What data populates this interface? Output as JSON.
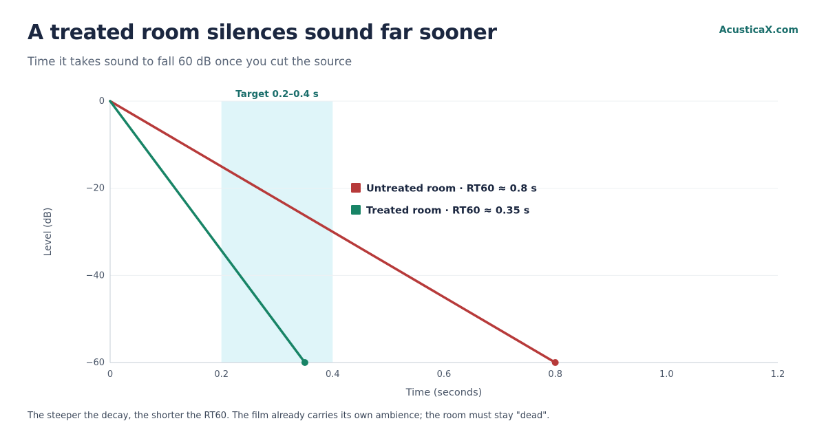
{
  "header": {
    "title": "A treated room silences sound far sooner",
    "subtitle": "Time it takes sound to fall 60 dB once you cut the source",
    "brand": "AcusticaX.com"
  },
  "footnote": "The steeper the decay, the shorter the RT60. The film already carries its own ambience; the room must stay \"dead\".",
  "colors": {
    "untreated": "#b73a3a",
    "treated": "#188466",
    "target_band": "#dff5f9",
    "target_label": "#1a6e6b",
    "text_dark": "#1b2740",
    "axis_text": "#4a5668"
  },
  "chart_data": {
    "type": "line",
    "xlabel": "Time (seconds)",
    "ylabel": "Level (dB)",
    "xlim": [
      0,
      1.2
    ],
    "ylim": [
      -60,
      0
    ],
    "xticks": [
      0,
      0.2,
      0.4,
      0.6,
      0.8,
      1.0,
      1.2
    ],
    "xtick_labels": [
      "0",
      "0.2",
      "0.4",
      "0.6",
      "0.8",
      "1.0",
      "1.2"
    ],
    "yticks": [
      0,
      -20,
      -40,
      -60
    ],
    "ytick_labels": [
      "0",
      "−20",
      "−40",
      "−60"
    ],
    "grid": "horizontal",
    "legend_placement": "center",
    "target_band": {
      "x0": 0.2,
      "x1": 0.4,
      "label": "Target 0.2–0.4 s"
    },
    "series": [
      {
        "name": "Untreated room · RT60 ≈ 0.8 s",
        "color_key": "untreated",
        "x": [
          0,
          0.8
        ],
        "y": [
          0,
          -60
        ]
      },
      {
        "name": "Treated room · RT60 ≈ 0.35 s",
        "color_key": "treated",
        "x": [
          0,
          0.35
        ],
        "y": [
          0,
          -60
        ]
      }
    ]
  }
}
